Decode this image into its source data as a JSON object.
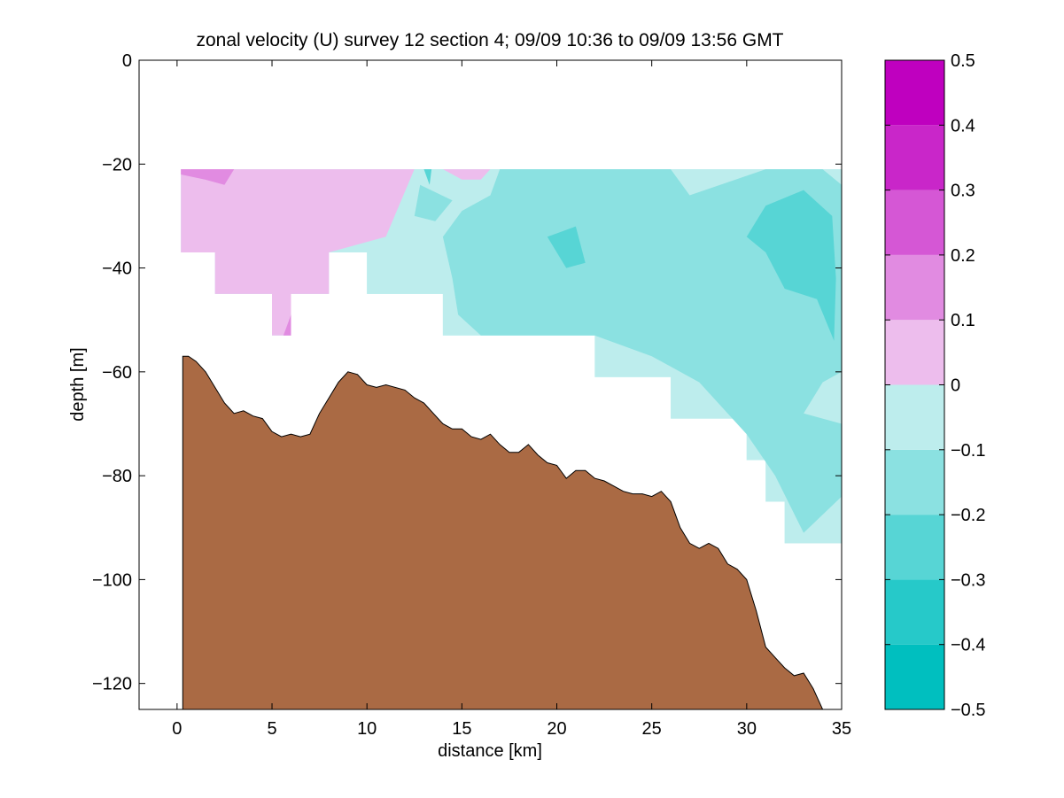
{
  "figure": {
    "background": "#ffffff"
  },
  "chart_data": {
    "type": "heatmap",
    "title": "zonal velocity (U) survey 12 section 4; 09/09 10:36 to 09/09 13:56 GMT",
    "xlabel": "distance [km]",
    "ylabel": "depth [m]",
    "xlim": [
      -2,
      35
    ],
    "ylim": [
      -125,
      0
    ],
    "x_ticks": [
      0,
      5,
      10,
      15,
      20,
      25,
      30,
      35
    ],
    "x_tick_labels": [
      "0",
      "5",
      "10",
      "15",
      "20",
      "25",
      "30",
      "35"
    ],
    "y_ticks": [
      0,
      -20,
      -40,
      -60,
      -80,
      -100,
      -120
    ],
    "y_tick_labels": [
      "0",
      "−20",
      "−40",
      "−60",
      "−80",
      "−100",
      "−120"
    ],
    "grid": false,
    "colorbar": {
      "placement": "right",
      "levels": [
        -0.5,
        -0.4,
        -0.3,
        -0.2,
        -0.1,
        0,
        0.1,
        0.2,
        0.3,
        0.4,
        0.5
      ],
      "tick_labels": [
        "−0.5",
        "−0.4",
        "−0.3",
        "−0.2",
        "−0.1",
        "0",
        "0.1",
        "0.2",
        "0.3",
        "0.4",
        "0.5"
      ],
      "colors": [
        "#00bfbf",
        "#26c9c9",
        "#57d5d5",
        "#8be1e1",
        "#bdeded",
        "#edbded",
        "#e18be1",
        "#d557d5",
        "#c926c9",
        "#bf00bf"
      ]
    },
    "data_extent": {
      "top_depth": -21,
      "x_start": 0.2,
      "x_end": 35,
      "bottom_profile": [
        [
          0.2,
          -37
        ],
        [
          2,
          -37
        ],
        [
          2,
          -45
        ],
        [
          5,
          -45
        ],
        [
          5,
          -53
        ],
        [
          6,
          -53
        ],
        [
          6,
          -45
        ],
        [
          8,
          -45
        ],
        [
          8,
          -37
        ],
        [
          10,
          -37
        ],
        [
          10,
          -45
        ],
        [
          14,
          -45
        ],
        [
          14,
          -53
        ],
        [
          22,
          -53
        ],
        [
          22,
          -61
        ],
        [
          26,
          -61
        ],
        [
          26,
          -69
        ],
        [
          30,
          -69
        ],
        [
          30,
          -77
        ],
        [
          31,
          -77
        ],
        [
          31,
          -85
        ],
        [
          32,
          -85
        ],
        [
          32,
          -93
        ],
        [
          35,
          -93
        ]
      ]
    },
    "velocity_fields": [
      {
        "level": "0 to 0.1",
        "color": "#edbded",
        "polygon": [
          [
            0.2,
            -21
          ],
          [
            12.5,
            -21
          ],
          [
            11,
            -34
          ],
          [
            8,
            -37
          ],
          [
            8,
            -45
          ],
          [
            6,
            -45
          ],
          [
            6,
            -53
          ],
          [
            5,
            -53
          ],
          [
            5,
            -45
          ],
          [
            2,
            -45
          ],
          [
            2,
            -37
          ],
          [
            0.2,
            -37
          ]
        ]
      },
      {
        "level": "0 to 0.1",
        "color": "#edbded",
        "polygon": [
          [
            14,
            -21
          ],
          [
            16.5,
            -21
          ],
          [
            16,
            -23
          ],
          [
            15,
            -23
          ]
        ]
      },
      {
        "level": "0.1 to 0.2",
        "color": "#e18be1",
        "polygon": [
          [
            0.2,
            -21
          ],
          [
            3,
            -21
          ],
          [
            2.5,
            -24
          ],
          [
            1.5,
            -23
          ],
          [
            0.2,
            -22
          ]
        ]
      },
      {
        "level": "0.1 to 0.2",
        "color": "#e18be1",
        "polygon": [
          [
            5.6,
            -53
          ],
          [
            6,
            -53
          ],
          [
            6,
            -49
          ],
          [
            5.8,
            -51
          ]
        ]
      },
      {
        "level": "-0.1 to 0",
        "color": "#bdeded",
        "polygon": [
          [
            12.5,
            -21
          ],
          [
            14,
            -21
          ],
          [
            15,
            -23
          ],
          [
            16,
            -23
          ],
          [
            16.5,
            -21
          ],
          [
            35,
            -21
          ],
          [
            35,
            -93
          ],
          [
            32,
            -93
          ],
          [
            32,
            -85
          ],
          [
            31,
            -85
          ],
          [
            31,
            -77
          ],
          [
            30,
            -77
          ],
          [
            30,
            -69
          ],
          [
            26,
            -69
          ],
          [
            26,
            -61
          ],
          [
            22,
            -61
          ],
          [
            22,
            -53
          ],
          [
            14,
            -53
          ],
          [
            14,
            -45
          ],
          [
            10,
            -45
          ],
          [
            10,
            -37
          ],
          [
            8,
            -37
          ],
          [
            11,
            -34
          ]
        ]
      },
      {
        "level": "-0.2 to -0.1",
        "color": "#8be1e1",
        "polygon": [
          [
            17,
            -21
          ],
          [
            26,
            -21
          ],
          [
            27,
            -26
          ],
          [
            31,
            -21
          ],
          [
            34,
            -21
          ],
          [
            35,
            -24
          ],
          [
            35,
            -60
          ],
          [
            34,
            -62
          ],
          [
            33,
            -68
          ],
          [
            35,
            -70
          ],
          [
            35,
            -84
          ],
          [
            33,
            -91
          ],
          [
            31.5,
            -80
          ],
          [
            30,
            -72
          ],
          [
            27.5,
            -62
          ],
          [
            25,
            -57
          ],
          [
            22,
            -53
          ],
          [
            16,
            -53
          ],
          [
            14.8,
            -49
          ],
          [
            14.5,
            -42
          ],
          [
            14,
            -34
          ],
          [
            15,
            -29
          ],
          [
            16.5,
            -26
          ]
        ]
      },
      {
        "level": "-0.2 to -0.1",
        "color": "#8be1e1",
        "polygon": [
          [
            12.8,
            -24
          ],
          [
            14.5,
            -27
          ],
          [
            13.6,
            -31
          ],
          [
            12.5,
            -30
          ]
        ]
      },
      {
        "level": "-0.3 to -0.2",
        "color": "#57d5d5",
        "polygon": [
          [
            31,
            -28
          ],
          [
            33,
            -25
          ],
          [
            34.5,
            -30
          ],
          [
            34.7,
            -42
          ],
          [
            34.6,
            -54
          ],
          [
            33.7,
            -46
          ],
          [
            32,
            -44
          ],
          [
            31,
            -37
          ],
          [
            30,
            -34
          ]
        ]
      },
      {
        "level": "-0.3 to -0.2",
        "color": "#57d5d5",
        "polygon": [
          [
            19.5,
            -34
          ],
          [
            21,
            -32
          ],
          [
            21.5,
            -39
          ],
          [
            20.5,
            -40
          ]
        ]
      },
      {
        "level": "-0.3 to -0.2",
        "color": "#57d5d5",
        "polygon": [
          [
            13,
            -21
          ],
          [
            13.4,
            -21
          ],
          [
            13.3,
            -24
          ]
        ]
      }
    ],
    "seafloor": {
      "color": "#aa6a44",
      "profile": [
        [
          0.3,
          -125
        ],
        [
          0.3,
          -57
        ],
        [
          0.6,
          -57
        ],
        [
          1,
          -58
        ],
        [
          1.5,
          -60
        ],
        [
          2,
          -63
        ],
        [
          2.5,
          -66
        ],
        [
          3,
          -68
        ],
        [
          3.5,
          -67.5
        ],
        [
          4,
          -68.5
        ],
        [
          4.5,
          -69
        ],
        [
          5,
          -71.5
        ],
        [
          5.5,
          -72.5
        ],
        [
          6,
          -72
        ],
        [
          6.5,
          -72.5
        ],
        [
          7,
          -72
        ],
        [
          7.5,
          -68
        ],
        [
          8,
          -65
        ],
        [
          8.5,
          -62
        ],
        [
          9,
          -60
        ],
        [
          9.5,
          -60.5
        ],
        [
          10,
          -62.5
        ],
        [
          10.5,
          -63
        ],
        [
          11,
          -62.5
        ],
        [
          12,
          -63.5
        ],
        [
          12.5,
          -65
        ],
        [
          13,
          -66
        ],
        [
          13.5,
          -68
        ],
        [
          14,
          -70
        ],
        [
          14.5,
          -71
        ],
        [
          15,
          -71
        ],
        [
          15.5,
          -72.5
        ],
        [
          16,
          -73
        ],
        [
          16.5,
          -72
        ],
        [
          17,
          -74
        ],
        [
          17.5,
          -75.5
        ],
        [
          18,
          -75.5
        ],
        [
          18.5,
          -74
        ],
        [
          19,
          -76
        ],
        [
          19.5,
          -77.5
        ],
        [
          20,
          -78
        ],
        [
          20.5,
          -80.5
        ],
        [
          21,
          -79
        ],
        [
          21.5,
          -79
        ],
        [
          22,
          -80.5
        ],
        [
          22.5,
          -81
        ],
        [
          23,
          -82
        ],
        [
          23.5,
          -83
        ],
        [
          24,
          -83.5
        ],
        [
          24.5,
          -83.5
        ],
        [
          25,
          -84
        ],
        [
          25.5,
          -83
        ],
        [
          26,
          -85
        ],
        [
          26.5,
          -90
        ],
        [
          27,
          -93
        ],
        [
          27.5,
          -94
        ],
        [
          28,
          -93
        ],
        [
          28.5,
          -94
        ],
        [
          29,
          -97
        ],
        [
          29.5,
          -98
        ],
        [
          30,
          -100
        ],
        [
          30.5,
          -106
        ],
        [
          31,
          -113
        ],
        [
          31.5,
          -115
        ],
        [
          32,
          -117
        ],
        [
          32.5,
          -118.5
        ],
        [
          33,
          -118
        ],
        [
          33.5,
          -121
        ],
        [
          34,
          -125
        ]
      ]
    }
  }
}
